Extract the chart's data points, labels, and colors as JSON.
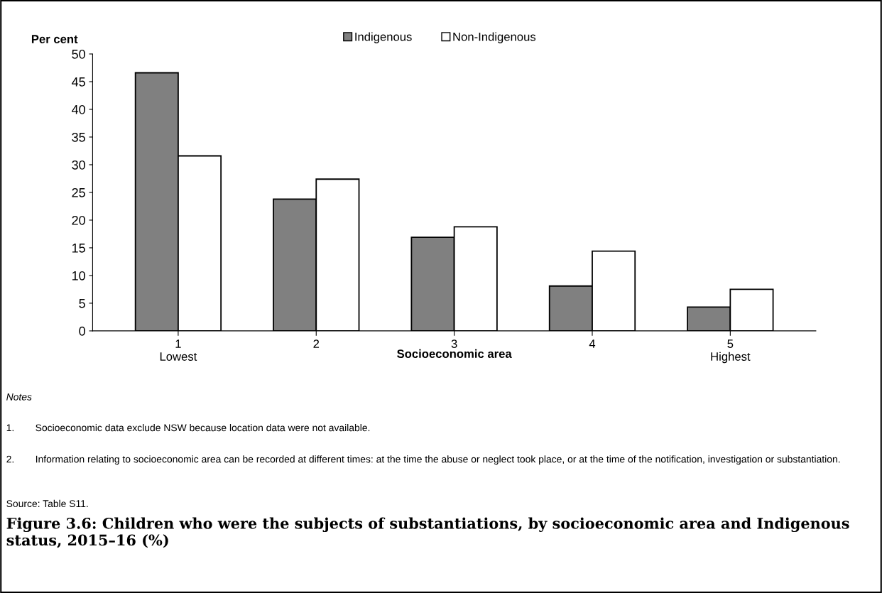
{
  "chart_data": {
    "type": "bar",
    "title": "Figure 3.6: Children who were the subjects of substantiations, by socioeconomic area and Indigenous status, 2015–16 (%)",
    "ylabel": "Per cent",
    "xlabel": "Socioeconomic area",
    "categories": [
      "1\nLowest",
      "2",
      "3",
      "4",
      "5\nHighest"
    ],
    "series": [
      {
        "name": "Indigenous",
        "color": "#808080",
        "values": [
          46.6,
          23.8,
          16.9,
          8.1,
          4.3
        ]
      },
      {
        "name": "Non-Indigenous",
        "color": "#ffffff",
        "values": [
          31.6,
          27.4,
          18.8,
          14.4,
          7.5
        ]
      }
    ],
    "ylim": [
      0,
      50
    ],
    "yticks": [
      0,
      5,
      10,
      15,
      20,
      25,
      30,
      35,
      40,
      45,
      50
    ],
    "grid": false,
    "legend": "top",
    "annotations": [
      "Notes",
      "1.\tSocioeconomic data exclude NSW because location data were not available.",
      "2.\tInformation relating to socioeconomic area can be recorded at different times: at the time the abuse or neglect took place, or at the time of the notification, investigation or substantiation.",
      "Source: Table S11."
    ]
  }
}
